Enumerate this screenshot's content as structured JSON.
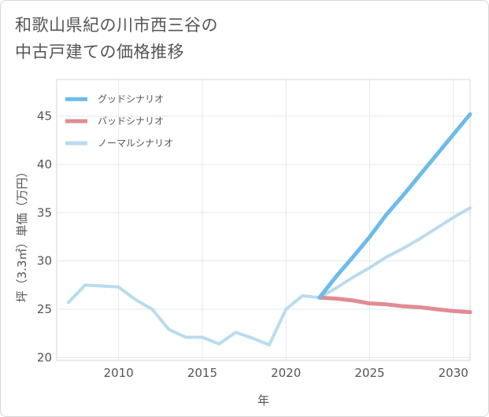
{
  "title_lines": [
    "和歌山県紀の川市西三谷の",
    "中古戸建ての価格推移"
  ],
  "chart_data": {
    "type": "line",
    "title": "和歌山県紀の川市西三谷の中古戸建ての価格推移",
    "xlabel": "年",
    "ylabel": "坪（3.3㎡）単価（万円）",
    "xlim": [
      2006.3,
      2031
    ],
    "ylim": [
      19.7,
      48.8
    ],
    "x_ticks": [
      2010,
      2015,
      2020,
      2025,
      2030
    ],
    "y_ticks": [
      20,
      25,
      30,
      35,
      40,
      45
    ],
    "grid": true,
    "legend_position": "top-left",
    "series": [
      {
        "name": "グッドシナリオ",
        "color": "#6dbbea",
        "x": [
          2022,
          2023,
          2024,
          2025,
          2026,
          2027,
          2028,
          2029,
          2030,
          2031
        ],
        "values": [
          26.2,
          28.4,
          30.4,
          32.5,
          34.8,
          36.8,
          38.9,
          41.0,
          43.1,
          45.2
        ]
      },
      {
        "name": "バッドシナリオ",
        "color": "#e08c92",
        "x": [
          2022,
          2023,
          2024,
          2025,
          2026,
          2027,
          2028,
          2029,
          2030,
          2031
        ],
        "values": [
          26.2,
          26.1,
          25.9,
          25.6,
          25.5,
          25.3,
          25.2,
          25.0,
          24.8,
          24.7
        ]
      },
      {
        "name": "ノーマルシナリオ",
        "color": "#b9dced",
        "x": [
          2007,
          2008,
          2009,
          2010,
          2011,
          2012,
          2013,
          2014,
          2015,
          2016,
          2017,
          2018,
          2019,
          2020,
          2021,
          2022,
          2023,
          2024,
          2025,
          2026,
          2027,
          2028,
          2029,
          2030,
          2031
        ],
        "values": [
          25.7,
          27.5,
          27.4,
          27.3,
          26.0,
          25.0,
          22.9,
          22.1,
          22.1,
          21.4,
          22.6,
          22.0,
          21.3,
          25.0,
          26.4,
          26.2,
          27.2,
          28.3,
          29.3,
          30.4,
          31.3,
          32.3,
          33.4,
          34.5,
          35.5
        ]
      }
    ]
  }
}
